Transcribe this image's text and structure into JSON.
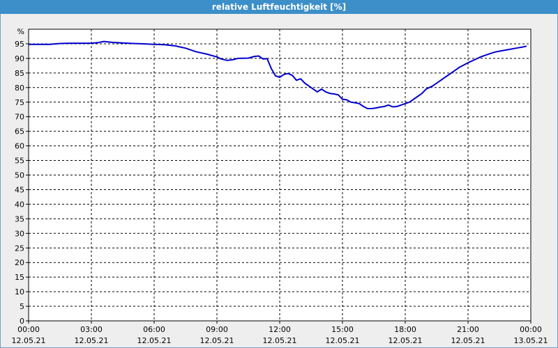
{
  "window": {
    "title": "relative Luftfeuchtigkeit [%]"
  },
  "colors": {
    "title_bar": "#3c8fc8",
    "plot_background": "#ffffff",
    "frame_background": "#eeeeee",
    "series": "#0000cc",
    "grid": "#000000"
  },
  "chart_data": {
    "type": "line",
    "title": "relative Luftfeuchtigkeit [%]",
    "ylabel": "%",
    "xlabel": "",
    "ylim": [
      0,
      100
    ],
    "xlim_hours": [
      0,
      24
    ],
    "grid": true,
    "grid_style": "dashed",
    "y_ticks": [
      0,
      5,
      10,
      15,
      20,
      25,
      30,
      35,
      40,
      45,
      50,
      55,
      60,
      65,
      70,
      75,
      80,
      85,
      90,
      95
    ],
    "x_ticks": [
      {
        "h": 0,
        "time": "00:00",
        "date": "12.05.21"
      },
      {
        "h": 3,
        "time": "03:00",
        "date": "12.05.21"
      },
      {
        "h": 6,
        "time": "06:00",
        "date": "12.05.21"
      },
      {
        "h": 9,
        "time": "09:00",
        "date": "12.05.21"
      },
      {
        "h": 12,
        "time": "12:00",
        "date": "12.05.21"
      },
      {
        "h": 15,
        "time": "15:00",
        "date": "12.05.21"
      },
      {
        "h": 18,
        "time": "18:00",
        "date": "12.05.21"
      },
      {
        "h": 21,
        "time": "21:00",
        "date": "12.05.21"
      },
      {
        "h": 24,
        "time": "00:00",
        "date": "13.05.21"
      }
    ],
    "series": [
      {
        "x": [
          0,
          1,
          1.5,
          2,
          3,
          3.3,
          3.6,
          4,
          5,
          5.5,
          6,
          6.5,
          7,
          7.5,
          8,
          8.5,
          9,
          9.2,
          9.5,
          9.8,
          10,
          10.5,
          10.8,
          11,
          11.2,
          11.4,
          11.6,
          11.8,
          12,
          12.2,
          12.4,
          12.6,
          12.8,
          13,
          13.2,
          13.4,
          13.6,
          13.8,
          14,
          14.2,
          14.4,
          14.6,
          14.8,
          15,
          15.2,
          15.4,
          15.6,
          15.8,
          16,
          16.2,
          16.4,
          16.6,
          16.8,
          17,
          17.2,
          17.4,
          17.6,
          17.8,
          18,
          18.2,
          18.5,
          18.8,
          19,
          19.3,
          19.6,
          20,
          20.3,
          20.6,
          21,
          21.3,
          21.6,
          22,
          22.3,
          22.6,
          23,
          23.3,
          23.6,
          23.8
        ],
        "y": [
          94.8,
          94.8,
          95.1,
          95.2,
          95.2,
          95.4,
          95.8,
          95.5,
          95.1,
          95.0,
          94.8,
          94.7,
          94.3,
          93.5,
          92.3,
          91.5,
          90.5,
          89.8,
          89.3,
          89.6,
          90.0,
          90.1,
          90.7,
          90.8,
          89.8,
          89.9,
          86.5,
          84.0,
          83.5,
          84.5,
          84.8,
          84.2,
          82.5,
          83.0,
          81.5,
          80.5,
          79.5,
          78.5,
          79.5,
          78.5,
          78.0,
          77.8,
          77.5,
          76.0,
          75.8,
          75.0,
          74.8,
          74.5,
          73.5,
          72.8,
          72.8,
          73.0,
          73.3,
          73.5,
          74.0,
          73.4,
          73.5,
          74.0,
          74.5,
          75.0,
          76.5,
          78.0,
          79.5,
          80.5,
          82.0,
          84.0,
          85.5,
          87.0,
          88.5,
          89.5,
          90.5,
          91.5,
          92.2,
          92.6,
          93.1,
          93.5,
          93.9,
          94.2
        ]
      }
    ]
  }
}
